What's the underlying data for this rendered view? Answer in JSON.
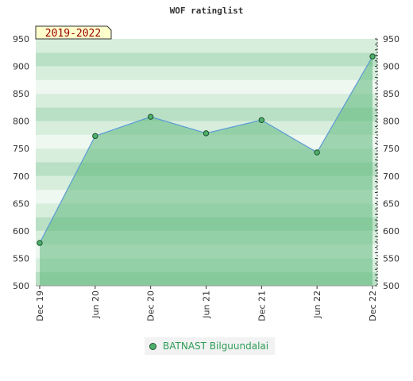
{
  "chart_data": {
    "type": "area",
    "title": "WOF ratinglist",
    "period_badge": "2019-2022",
    "categories": [
      "Dec 19",
      "Jun 20",
      "Dec 20",
      "Jun 21",
      "Dec 21",
      "Jun 22",
      "Dec 22"
    ],
    "series": [
      {
        "name": "BATNAST Bilguundalai",
        "values": [
          578,
          773,
          808,
          778,
          802,
          743,
          918
        ]
      }
    ],
    "ylim": [
      500,
      950
    ],
    "yticks": [
      500,
      550,
      600,
      650,
      700,
      750,
      800,
      850,
      900,
      950
    ],
    "xlabel": "",
    "ylabel": "",
    "y_axis_both_sides": true,
    "grid": "horizontal alternating bands",
    "legend_position": "bottom",
    "colors": {
      "line": "#5b9bd5",
      "fill": "#5cb87a",
      "point": "#4caf6a",
      "point_stroke": "#1f5130",
      "band_light": "#eef7f0",
      "band_mid": "#d7eedd",
      "band_dark": "#b9e0c4",
      "badge_bg": "#ffffcc",
      "legend_text": "#2e9e57"
    }
  }
}
